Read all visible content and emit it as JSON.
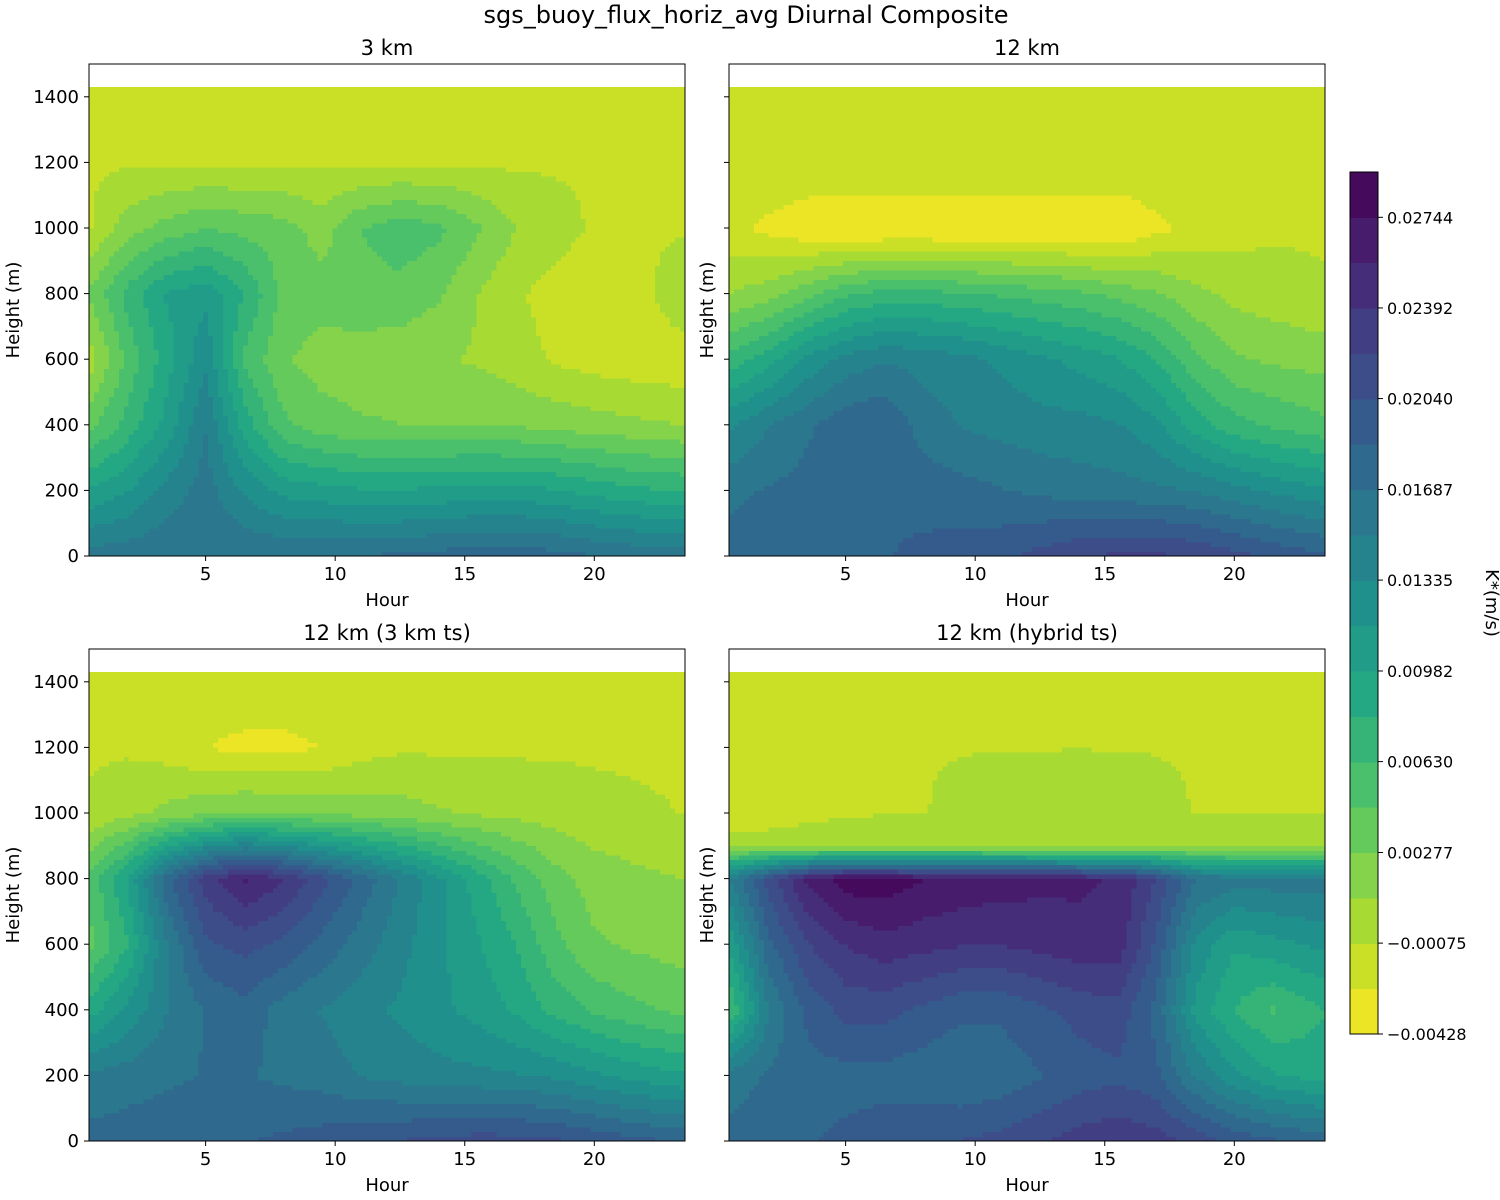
{
  "figure": {
    "title": "sgs_buoy_flux_horiz_avg Diurnal Composite"
  },
  "chart_data": [
    {
      "type": "heatmap",
      "title": "3 km",
      "xlabel": "Hour",
      "ylabel": "Height (m)",
      "xlim": [
        0.5,
        23.5
      ],
      "ylim": [
        0,
        1500
      ],
      "xticks": [
        "5",
        "10",
        "15",
        "20"
      ],
      "yticks": [
        "0",
        "200",
        "400",
        "600",
        "800",
        "1000",
        "1200",
        "1400"
      ],
      "data_top": 1430,
      "x": [
        0.5,
        2,
        3.5,
        5,
        6.5,
        8,
        9.5,
        11,
        12.5,
        14,
        15.5,
        17,
        18.5,
        20,
        21.5,
        23.5
      ],
      "y": [
        0,
        200,
        400,
        600,
        800,
        1000,
        1200,
        1430
      ],
      "z": [
        [
          0.016,
          0.0162,
          0.0168,
          0.0168,
          0.0168,
          0.0168,
          0.0168,
          0.017,
          0.0172,
          0.0176,
          0.018,
          0.018,
          0.0176,
          0.017,
          0.0165,
          0.016
        ],
        [
          0.01,
          0.0115,
          0.014,
          0.016,
          0.013,
          0.011,
          0.0105,
          0.01,
          0.01,
          0.0102,
          0.0105,
          0.0105,
          0.01,
          0.0092,
          0.0085,
          0.008
        ],
        [
          0.004,
          0.007,
          0.0105,
          0.015,
          0.009,
          0.005,
          0.0035,
          0.003,
          0.0028,
          0.0028,
          0.0028,
          0.0026,
          0.0022,
          0.0018,
          0.0014,
          0.001
        ],
        [
          0.0,
          0.005,
          0.009,
          0.013,
          0.006,
          0.003,
          0.002,
          0.0018,
          0.0015,
          0.0012,
          0.0008,
          0.0,
          -0.001,
          -0.0015,
          -0.0018,
          -0.002
        ],
        [
          0.003,
          0.007,
          0.01,
          0.011,
          0.008,
          0.004,
          0.0035,
          0.004,
          0.004,
          0.003,
          0.001,
          -0.0005,
          -0.0015,
          -0.002,
          -0.002,
          0.001
        ],
        [
          -0.001,
          0.002,
          0.0035,
          0.0045,
          0.004,
          0.0035,
          0.002,
          0.0045,
          0.0055,
          0.005,
          0.003,
          0.001,
          0.0,
          -0.001,
          -0.001,
          -0.001
        ],
        [
          -0.001,
          -0.001,
          -0.001,
          -0.001,
          -0.001,
          -0.001,
          -0.001,
          -0.001,
          -0.001,
          -0.001,
          -0.001,
          -0.001,
          -0.001,
          -0.001,
          -0.001,
          -0.001
        ],
        [
          -0.001,
          -0.001,
          -0.001,
          -0.001,
          -0.001,
          -0.001,
          -0.001,
          -0.001,
          -0.001,
          -0.001,
          -0.001,
          -0.001,
          -0.001,
          -0.001,
          -0.001,
          -0.001
        ]
      ]
    },
    {
      "type": "heatmap",
      "title": "12 km",
      "xlabel": "Hour",
      "ylabel": "Height (m)",
      "xlim": [
        0.5,
        23.5
      ],
      "ylim": [
        0,
        1500
      ],
      "xticks": [
        "5",
        "10",
        "15",
        "20"
      ],
      "yticks": [],
      "data_top": 1430,
      "x": [
        0.5,
        2,
        3.5,
        5,
        6.5,
        8,
        9.5,
        11,
        12.5,
        14,
        15.5,
        17,
        18.5,
        20,
        21.5,
        23.5
      ],
      "y": [
        0,
        200,
        400,
        600,
        800,
        1000,
        1200,
        1430
      ],
      "z": [
        [
          0.0175,
          0.0178,
          0.018,
          0.0182,
          0.0185,
          0.019,
          0.0195,
          0.02,
          0.021,
          0.022,
          0.0225,
          0.0225,
          0.022,
          0.021,
          0.02,
          0.019
        ],
        [
          0.0165,
          0.017,
          0.0175,
          0.018,
          0.0185,
          0.018,
          0.0175,
          0.017,
          0.0165,
          0.016,
          0.0158,
          0.0155,
          0.015,
          0.014,
          0.013,
          0.012
        ],
        [
          0.013,
          0.015,
          0.0165,
          0.018,
          0.0185,
          0.016,
          0.015,
          0.0145,
          0.014,
          0.014,
          0.0135,
          0.012,
          0.009,
          0.007,
          0.006,
          0.005
        ],
        [
          0.007,
          0.009,
          0.012,
          0.014,
          0.015,
          0.0145,
          0.014,
          0.013,
          0.012,
          0.011,
          0.01,
          0.008,
          0.005,
          0.003,
          0.0025,
          0.002
        ],
        [
          0.001,
          0.002,
          0.004,
          0.006,
          0.007,
          0.007,
          0.0065,
          0.006,
          0.0055,
          0.005,
          0.004,
          0.003,
          0.0015,
          0.0005,
          0.0,
          -0.0005
        ],
        [
          -0.002,
          -0.003,
          -0.004,
          -0.0045,
          -0.0045,
          -0.0045,
          -0.0045,
          -0.0045,
          -0.0045,
          -0.0045,
          -0.0045,
          -0.003,
          -0.002,
          -0.0015,
          -0.001,
          -0.001
        ],
        [
          -0.0008,
          -0.0008,
          -0.0008,
          -0.0008,
          -0.0008,
          -0.0008,
          -0.0008,
          -0.0008,
          -0.0008,
          -0.0008,
          -0.0008,
          -0.0008,
          -0.0008,
          -0.0008,
          -0.0008,
          -0.0008
        ],
        [
          -0.0008,
          -0.0008,
          -0.0008,
          -0.0008,
          -0.0008,
          -0.0008,
          -0.0008,
          -0.0008,
          -0.0008,
          -0.0008,
          -0.0008,
          -0.0008,
          -0.0008,
          -0.0008,
          -0.0008,
          -0.0008
        ]
      ]
    },
    {
      "type": "heatmap",
      "title": "12 km (3 km ts)",
      "xlabel": "Hour",
      "ylabel": "Height (m)",
      "xlim": [
        0.5,
        23.5
      ],
      "ylim": [
        0,
        1500
      ],
      "xticks": [
        "5",
        "10",
        "15",
        "20"
      ],
      "yticks": [
        "0",
        "200",
        "400",
        "600",
        "800",
        "1000",
        "1200",
        "1400"
      ],
      "data_top": 1430,
      "x": [
        0.5,
        2,
        3.5,
        5,
        6.5,
        8,
        9.5,
        11,
        12.5,
        14,
        15.5,
        17,
        18.5,
        20,
        21.5,
        23.5
      ],
      "y": [
        0,
        200,
        400,
        600,
        800,
        1000,
        1200,
        1430
      ],
      "z": [
        [
          0.0175,
          0.0178,
          0.018,
          0.0182,
          0.0185,
          0.019,
          0.0195,
          0.02,
          0.0205,
          0.021,
          0.0212,
          0.0212,
          0.0208,
          0.02,
          0.0192,
          0.0185
        ],
        [
          0.0155,
          0.016,
          0.0165,
          0.017,
          0.017,
          0.0165,
          0.016,
          0.015,
          0.0145,
          0.014,
          0.0138,
          0.0135,
          0.013,
          0.012,
          0.011,
          0.01
        ],
        [
          0.009,
          0.012,
          0.015,
          0.017,
          0.018,
          0.016,
          0.015,
          0.014,
          0.013,
          0.012,
          0.011,
          0.0095,
          0.0075,
          0.006,
          0.005,
          0.004
        ],
        [
          0.004,
          0.008,
          0.015,
          0.02,
          0.021,
          0.02,
          0.018,
          0.016,
          0.014,
          0.012,
          0.01,
          0.008,
          0.005,
          0.003,
          0.0025,
          0.002
        ],
        [
          0.005,
          0.01,
          0.018,
          0.023,
          0.026,
          0.024,
          0.021,
          0.018,
          0.015,
          0.012,
          0.009,
          0.006,
          0.0035,
          0.002,
          0.0015,
          0.001
        ],
        [
          -0.0005,
          0.0005,
          0.0015,
          0.0025,
          0.003,
          0.0028,
          0.0025,
          0.0022,
          0.0018,
          0.0012,
          0.0008,
          0.0005,
          0.0002,
          -0.0002,
          -0.0005,
          -0.0008
        ],
        [
          -0.001,
          -0.001,
          -0.0015,
          -0.0025,
          -0.003,
          -0.003,
          -0.0025,
          -0.0015,
          -0.001,
          -0.001,
          -0.001,
          -0.001,
          -0.001,
          -0.001,
          -0.001,
          -0.001
        ],
        [
          -0.001,
          -0.001,
          -0.001,
          -0.001,
          -0.001,
          -0.001,
          -0.001,
          -0.001,
          -0.001,
          -0.001,
          -0.001,
          -0.001,
          -0.001,
          -0.001,
          -0.001,
          -0.001
        ]
      ]
    },
    {
      "type": "heatmap",
      "title": "12 km (hybrid ts)",
      "xlabel": "Hour",
      "ylabel": "Height (m)",
      "xlim": [
        0.5,
        23.5
      ],
      "ylim": [
        0,
        1500
      ],
      "xticks": [
        "5",
        "10",
        "15",
        "20"
      ],
      "yticks": [],
      "data_top": 1430,
      "x": [
        0.5,
        2,
        3.5,
        5,
        6.5,
        8,
        9.5,
        11,
        12.5,
        14,
        15.5,
        17,
        18.5,
        20,
        21.5,
        23.5
      ],
      "y": [
        0,
        200,
        400,
        600,
        800,
        900,
        1000,
        1200,
        1430
      ],
      "z": [
        [
          0.0175,
          0.018,
          0.0185,
          0.019,
          0.0195,
          0.02,
          0.0205,
          0.021,
          0.022,
          0.023,
          0.0235,
          0.023,
          0.0215,
          0.02,
          0.019,
          0.018
        ],
        [
          0.016,
          0.017,
          0.018,
          0.018,
          0.018,
          0.0175,
          0.017,
          0.0175,
          0.0185,
          0.0195,
          0.02,
          0.019,
          0.015,
          0.012,
          0.01,
          0.009
        ],
        [
          0.006,
          0.015,
          0.019,
          0.021,
          0.021,
          0.02,
          0.019,
          0.019,
          0.02,
          0.021,
          0.0215,
          0.018,
          0.011,
          0.008,
          0.006,
          0.008
        ],
        [
          0.01,
          0.018,
          0.022,
          0.024,
          0.025,
          0.0245,
          0.024,
          0.024,
          0.0245,
          0.025,
          0.025,
          0.02,
          0.013,
          0.01,
          0.011,
          0.012
        ],
        [
          0.015,
          0.021,
          0.026,
          0.0285,
          0.0285,
          0.0275,
          0.027,
          0.0265,
          0.0262,
          0.026,
          0.0255,
          0.022,
          0.017,
          0.016,
          0.016,
          0.016
        ],
        [
          0.001,
          0.001,
          0.001,
          0.001,
          0.001,
          0.001,
          0.001,
          0.001,
          0.001,
          0.001,
          0.001,
          0.001,
          0.001,
          0.001,
          0.001,
          0.001
        ],
        [
          -0.0025,
          -0.0025,
          -0.0015,
          -0.001,
          -0.0008,
          -0.0008,
          -0.0005,
          0.0,
          0.0005,
          0.0008,
          0.0005,
          -0.0005,
          -0.0008,
          -0.0008,
          -0.0008,
          -0.0008
        ],
        [
          -0.0008,
          -0.0008,
          -0.0008,
          -0.0008,
          -0.0008,
          -0.0008,
          -0.0008,
          -0.0008,
          -0.0008,
          -0.0008,
          -0.0008,
          -0.0008,
          -0.0008,
          -0.0008,
          -0.0008,
          -0.0008
        ],
        [
          -0.0008,
          -0.0008,
          -0.0008,
          -0.0008,
          -0.0008,
          -0.0008,
          -0.0008,
          -0.0008,
          -0.0008,
          -0.0008,
          -0.0008,
          -0.0008,
          -0.0008,
          -0.0008,
          -0.0008,
          -0.0008
        ]
      ]
    }
  ],
  "colorbar": {
    "label": "K*(m/s)",
    "colormap": "viridis_r",
    "vmin": -0.00428,
    "vmax": 0.0292,
    "levels": 19,
    "tick_values": [
      -0.00428,
      -0.00075,
      0.00277,
      0.0063,
      0.00982,
      0.01335,
      0.01687,
      0.0204,
      0.02392,
      0.02744
    ],
    "tick_labels": [
      "−0.00428",
      "−0.00075",
      "0.00277",
      "0.00630",
      "0.00982",
      "0.01335",
      "0.01687",
      "0.02040",
      "0.02392",
      "0.02744"
    ]
  }
}
